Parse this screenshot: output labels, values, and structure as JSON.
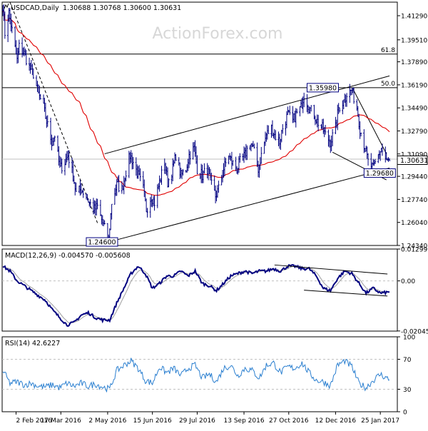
{
  "chart_data": {
    "type": "candlestick",
    "symbol_label": "USDCAD,Daily",
    "ohlc_label": "1.30688 1.30768 1.30600 1.30631",
    "watermark": "ActionForex.com",
    "colors": {
      "price": "#000080",
      "sma": "#e00000",
      "macd": "#000080",
      "signal": "#a0a0a0",
      "rsi": "#2a7fd0",
      "level_box": "#000080",
      "grid": "#c0c0c0",
      "background": "#ffffff"
    },
    "x_ticks": [
      "2 Feb 2016",
      "17 Mar 2016",
      "2 May 2016",
      "15 Jun 2016",
      "29 Jul 2016",
      "13 Sep 2016",
      "27 Oct 2016",
      "12 Dec 2016",
      "25 Jan 2017"
    ],
    "price_panel": {
      "y_ticks": [
        "1.41290",
        "1.39510",
        "1.37890",
        "1.36190",
        "1.34490",
        "1.32790",
        "1.31090",
        "1.29440",
        "1.27740",
        "1.26040",
        "1.24340"
      ],
      "ylim": [
        1.2434,
        1.4229
      ],
      "last_price_label": "1.30631",
      "fib_levels": [
        {
          "label": "61.8",
          "value": 1.3846
        },
        {
          "label": "50.0",
          "value": 1.3598
        }
      ],
      "support_line_value": 1.3071,
      "annotated_levels": [
        {
          "label": "1.35980",
          "value": 1.3598
        },
        {
          "label": "1.29680",
          "value": 1.2968
        },
        {
          "label": "1.24600",
          "value": 1.246
        }
      ],
      "trendlines": [
        {
          "from": [
            "2016-04-29",
            1.311
          ],
          "to": [
            "2017-02-03",
            1.3685
          ]
        },
        {
          "from": [
            "2016-05-03",
            1.246
          ],
          "to": [
            "2017-02-03",
            1.3005
          ]
        },
        {
          "from": [
            "2016-12-29",
            1.359
          ],
          "to": [
            "2017-01-31",
            1.311
          ]
        },
        {
          "from": [
            "2016-12-09",
            1.3122
          ],
          "to": [
            "2017-01-31",
            1.2918
          ]
        }
      ],
      "close_series": [
        {
          "date": "2016-01-20",
          "close": 1.421
        },
        {
          "date": "2016-01-22",
          "close": 1.4
        },
        {
          "date": "2016-01-26",
          "close": 1.415
        },
        {
          "date": "2016-01-29",
          "close": 1.402
        },
        {
          "date": "2016-02-03",
          "close": 1.38
        },
        {
          "date": "2016-02-05",
          "close": 1.39
        },
        {
          "date": "2016-02-10",
          "close": 1.385
        },
        {
          "date": "2016-02-15",
          "close": 1.375
        },
        {
          "date": "2016-02-19",
          "close": 1.37
        },
        {
          "date": "2016-02-24",
          "close": 1.355
        },
        {
          "date": "2016-02-29",
          "close": 1.345
        },
        {
          "date": "2016-03-03",
          "close": 1.335
        },
        {
          "date": "2016-03-08",
          "close": 1.32
        },
        {
          "date": "2016-03-11",
          "close": 1.325
        },
        {
          "date": "2016-03-16",
          "close": 1.3
        },
        {
          "date": "2016-03-21",
          "close": 1.305
        },
        {
          "date": "2016-03-24",
          "close": 1.31
        },
        {
          "date": "2016-03-29",
          "close": 1.295
        },
        {
          "date": "2016-04-01",
          "close": 1.282
        },
        {
          "date": "2016-04-06",
          "close": 1.285
        },
        {
          "date": "2016-04-11",
          "close": 1.28
        },
        {
          "date": "2016-04-14",
          "close": 1.275
        },
        {
          "date": "2016-04-19",
          "close": 1.27
        },
        {
          "date": "2016-04-22",
          "close": 1.272
        },
        {
          "date": "2016-04-27",
          "close": 1.26
        },
        {
          "date": "2016-05-03",
          "close": 1.248
        },
        {
          "date": "2016-05-06",
          "close": 1.275
        },
        {
          "date": "2016-05-11",
          "close": 1.288
        },
        {
          "date": "2016-05-16",
          "close": 1.285
        },
        {
          "date": "2016-05-19",
          "close": 1.295
        },
        {
          "date": "2016-05-24",
          "close": 1.31
        },
        {
          "date": "2016-05-27",
          "close": 1.305
        },
        {
          "date": "2016-06-01",
          "close": 1.295
        },
        {
          "date": "2016-06-06",
          "close": 1.285
        },
        {
          "date": "2016-06-09",
          "close": 1.27
        },
        {
          "date": "2016-06-14",
          "close": 1.28
        },
        {
          "date": "2016-06-17",
          "close": 1.275
        },
        {
          "date": "2016-06-22",
          "close": 1.29
        },
        {
          "date": "2016-06-27",
          "close": 1.305
        },
        {
          "date": "2016-06-30",
          "close": 1.29
        },
        {
          "date": "2016-07-05",
          "close": 1.3
        },
        {
          "date": "2016-07-08",
          "close": 1.31
        },
        {
          "date": "2016-07-13",
          "close": 1.295
        },
        {
          "date": "2016-07-18",
          "close": 1.3
        },
        {
          "date": "2016-07-21",
          "close": 1.31
        },
        {
          "date": "2016-07-26",
          "close": 1.315
        },
        {
          "date": "2016-07-29",
          "close": 1.3
        },
        {
          "date": "2016-08-03",
          "close": 1.295
        },
        {
          "date": "2016-08-08",
          "close": 1.3
        },
        {
          "date": "2016-08-11",
          "close": 1.29
        },
        {
          "date": "2016-08-16",
          "close": 1.28
        },
        {
          "date": "2016-08-19",
          "close": 1.285
        },
        {
          "date": "2016-08-24",
          "close": 1.3
        },
        {
          "date": "2016-08-29",
          "close": 1.31
        },
        {
          "date": "2016-09-01",
          "close": 1.305
        },
        {
          "date": "2016-09-06",
          "close": 1.3
        },
        {
          "date": "2016-09-09",
          "close": 1.305
        },
        {
          "date": "2016-09-14",
          "close": 1.31
        },
        {
          "date": "2016-09-19",
          "close": 1.32
        },
        {
          "date": "2016-09-22",
          "close": 1.315
        },
        {
          "date": "2016-09-27",
          "close": 1.3
        },
        {
          "date": "2016-09-30",
          "close": 1.31
        },
        {
          "date": "2016-10-05",
          "close": 1.325
        },
        {
          "date": "2016-10-10",
          "close": 1.33
        },
        {
          "date": "2016-10-13",
          "close": 1.325
        },
        {
          "date": "2016-10-18",
          "close": 1.32
        },
        {
          "date": "2016-10-21",
          "close": 1.33
        },
        {
          "date": "2016-10-26",
          "close": 1.34
        },
        {
          "date": "2016-10-31",
          "close": 1.335
        },
        {
          "date": "2016-11-03",
          "close": 1.34
        },
        {
          "date": "2016-11-08",
          "close": 1.345
        },
        {
          "date": "2016-11-11",
          "close": 1.355
        },
        {
          "date": "2016-11-16",
          "close": 1.345
        },
        {
          "date": "2016-11-21",
          "close": 1.34
        },
        {
          "date": "2016-11-24",
          "close": 1.335
        },
        {
          "date": "2016-11-29",
          "close": 1.33
        },
        {
          "date": "2016-12-02",
          "close": 1.325
        },
        {
          "date": "2016-12-07",
          "close": 1.32
        },
        {
          "date": "2016-12-12",
          "close": 1.33
        },
        {
          "date": "2016-12-15",
          "close": 1.345
        },
        {
          "date": "2016-12-20",
          "close": 1.35
        },
        {
          "date": "2016-12-23",
          "close": 1.355
        },
        {
          "date": "2016-12-28",
          "close": 1.358
        },
        {
          "date": "2017-01-02",
          "close": 1.345
        },
        {
          "date": "2017-01-05",
          "close": 1.33
        },
        {
          "date": "2017-01-10",
          "close": 1.315
        },
        {
          "date": "2017-01-13",
          "close": 1.305
        },
        {
          "date": "2017-01-18",
          "close": 1.3
        },
        {
          "date": "2017-01-23",
          "close": 1.31
        },
        {
          "date": "2017-01-26",
          "close": 1.315
        },
        {
          "date": "2017-01-31",
          "close": 1.305
        },
        {
          "date": "2017-02-03",
          "close": 1.306
        }
      ]
    },
    "macd_panel": {
      "label": "MACD(12,26,9) -0.004570 -0.005608",
      "y_ticks": [
        "0.012999",
        "0.00",
        "-0.020453"
      ],
      "ylim": [
        -0.0205,
        0.013
      ],
      "trendlines": [
        {
          "from": [
            "2016-10-13",
            0.0065
          ],
          "to": [
            "2017-02-01",
            0.0028
          ]
        },
        {
          "from": [
            "2016-11-11",
            -0.0038
          ],
          "to": [
            "2017-02-01",
            -0.0062
          ]
        }
      ],
      "macd_series": [
        {
          "date": "2016-01-20",
          "macd": 0.006
        },
        {
          "date": "2016-01-27",
          "macd": 0.004
        },
        {
          "date": "2016-02-03",
          "macd": 0.0
        },
        {
          "date": "2016-02-10",
          "macd": -0.002
        },
        {
          "date": "2016-02-17",
          "macd": -0.004
        },
        {
          "date": "2016-02-24",
          "macd": -0.006
        },
        {
          "date": "2016-03-02",
          "macd": -0.008
        },
        {
          "date": "2016-03-09",
          "macd": -0.012
        },
        {
          "date": "2016-03-16",
          "macd": -0.015
        },
        {
          "date": "2016-03-23",
          "macd": -0.018
        },
        {
          "date": "2016-03-30",
          "macd": -0.017
        },
        {
          "date": "2016-04-06",
          "macd": -0.014
        },
        {
          "date": "2016-04-13",
          "macd": -0.013
        },
        {
          "date": "2016-04-20",
          "macd": -0.015
        },
        {
          "date": "2016-04-27",
          "macd": -0.016
        },
        {
          "date": "2016-05-04",
          "macd": -0.016
        },
        {
          "date": "2016-05-11",
          "macd": -0.009
        },
        {
          "date": "2016-05-18",
          "macd": -0.003
        },
        {
          "date": "2016-05-25",
          "macd": 0.003
        },
        {
          "date": "2016-06-01",
          "macd": 0.006
        },
        {
          "date": "2016-06-08",
          "macd": 0.003
        },
        {
          "date": "2016-06-15",
          "macd": -0.003
        },
        {
          "date": "2016-06-22",
          "macd": -0.001
        },
        {
          "date": "2016-06-29",
          "macd": 0.002
        },
        {
          "date": "2016-07-06",
          "macd": 0.002
        },
        {
          "date": "2016-07-13",
          "macd": 0.004
        },
        {
          "date": "2016-07-20",
          "macd": 0.002
        },
        {
          "date": "2016-07-27",
          "macd": 0.004
        },
        {
          "date": "2016-08-03",
          "macd": -0.001
        },
        {
          "date": "2016-08-10",
          "macd": -0.002
        },
        {
          "date": "2016-08-17",
          "macd": -0.004
        },
        {
          "date": "2016-08-24",
          "macd": -0.001
        },
        {
          "date": "2016-08-31",
          "macd": 0.002
        },
        {
          "date": "2016-09-07",
          "macd": 0.003
        },
        {
          "date": "2016-09-14",
          "macd": 0.004
        },
        {
          "date": "2016-09-21",
          "macd": 0.003
        },
        {
          "date": "2016-09-28",
          "macd": 0.004
        },
        {
          "date": "2016-10-05",
          "macd": 0.004
        },
        {
          "date": "2016-10-12",
          "macd": 0.005
        },
        {
          "date": "2016-10-19",
          "macd": 0.004
        },
        {
          "date": "2016-10-26",
          "macd": 0.006
        },
        {
          "date": "2016-11-02",
          "macd": 0.006
        },
        {
          "date": "2016-11-09",
          "macd": 0.005
        },
        {
          "date": "2016-11-16",
          "macd": 0.005
        },
        {
          "date": "2016-11-23",
          "macd": 0.002
        },
        {
          "date": "2016-11-30",
          "macd": -0.003
        },
        {
          "date": "2016-12-07",
          "macd": -0.004
        },
        {
          "date": "2016-12-14",
          "macd": 0.001
        },
        {
          "date": "2016-12-21",
          "macd": 0.004
        },
        {
          "date": "2016-12-28",
          "macd": 0.003
        },
        {
          "date": "2017-01-04",
          "macd": -0.001
        },
        {
          "date": "2017-01-11",
          "macd": -0.005
        },
        {
          "date": "2017-01-18",
          "macd": -0.003
        },
        {
          "date": "2017-01-25",
          "macd": -0.005
        },
        {
          "date": "2017-02-03",
          "macd": -0.0046
        }
      ]
    },
    "rsi_panel": {
      "label": "RSI(14) 42.6227",
      "y_ticks": [
        "100",
        "70",
        "30",
        "0"
      ],
      "ylim": [
        0,
        100
      ],
      "levels": [
        70,
        30
      ],
      "rsi_series": [
        {
          "date": "2016-01-20",
          "rsi": 55
        },
        {
          "date": "2016-01-27",
          "rsi": 38
        },
        {
          "date": "2016-02-03",
          "rsi": 40
        },
        {
          "date": "2016-02-10",
          "rsi": 36
        },
        {
          "date": "2016-02-17",
          "rsi": 38
        },
        {
          "date": "2016-02-24",
          "rsi": 34
        },
        {
          "date": "2016-03-02",
          "rsi": 33
        },
        {
          "date": "2016-03-09",
          "rsi": 36
        },
        {
          "date": "2016-03-16",
          "rsi": 32
        },
        {
          "date": "2016-03-23",
          "rsi": 38
        },
        {
          "date": "2016-03-30",
          "rsi": 34
        },
        {
          "date": "2016-04-06",
          "rsi": 38
        },
        {
          "date": "2016-04-13",
          "rsi": 34
        },
        {
          "date": "2016-04-20",
          "rsi": 37
        },
        {
          "date": "2016-04-27",
          "rsi": 33
        },
        {
          "date": "2016-05-04",
          "rsi": 30
        },
        {
          "date": "2016-05-11",
          "rsi": 55
        },
        {
          "date": "2016-05-18",
          "rsi": 62
        },
        {
          "date": "2016-05-25",
          "rsi": 68
        },
        {
          "date": "2016-06-01",
          "rsi": 58
        },
        {
          "date": "2016-06-08",
          "rsi": 42
        },
        {
          "date": "2016-06-15",
          "rsi": 38
        },
        {
          "date": "2016-06-22",
          "rsi": 60
        },
        {
          "date": "2016-06-29",
          "rsi": 52
        },
        {
          "date": "2016-07-06",
          "rsi": 58
        },
        {
          "date": "2016-07-13",
          "rsi": 48
        },
        {
          "date": "2016-07-20",
          "rsi": 58
        },
        {
          "date": "2016-07-27",
          "rsi": 62
        },
        {
          "date": "2016-08-03",
          "rsi": 45
        },
        {
          "date": "2016-08-10",
          "rsi": 50
        },
        {
          "date": "2016-08-17",
          "rsi": 40
        },
        {
          "date": "2016-08-24",
          "rsi": 58
        },
        {
          "date": "2016-08-31",
          "rsi": 62
        },
        {
          "date": "2016-09-07",
          "rsi": 48
        },
        {
          "date": "2016-09-14",
          "rsi": 58
        },
        {
          "date": "2016-09-21",
          "rsi": 55
        },
        {
          "date": "2016-09-28",
          "rsi": 45
        },
        {
          "date": "2016-10-05",
          "rsi": 62
        },
        {
          "date": "2016-10-12",
          "rsi": 65
        },
        {
          "date": "2016-10-19",
          "rsi": 52
        },
        {
          "date": "2016-10-26",
          "rsi": 60
        },
        {
          "date": "2016-11-02",
          "rsi": 58
        },
        {
          "date": "2016-11-09",
          "rsi": 65
        },
        {
          "date": "2016-11-16",
          "rsi": 52
        },
        {
          "date": "2016-11-23",
          "rsi": 42
        },
        {
          "date": "2016-11-30",
          "rsi": 40
        },
        {
          "date": "2016-12-07",
          "rsi": 35
        },
        {
          "date": "2016-12-14",
          "rsi": 62
        },
        {
          "date": "2016-12-21",
          "rsi": 68
        },
        {
          "date": "2016-12-28",
          "rsi": 60
        },
        {
          "date": "2017-01-04",
          "rsi": 38
        },
        {
          "date": "2017-01-11",
          "rsi": 32
        },
        {
          "date": "2017-01-18",
          "rsi": 42
        },
        {
          "date": "2017-01-25",
          "rsi": 50
        },
        {
          "date": "2017-02-03",
          "rsi": 42.6
        }
      ]
    }
  }
}
